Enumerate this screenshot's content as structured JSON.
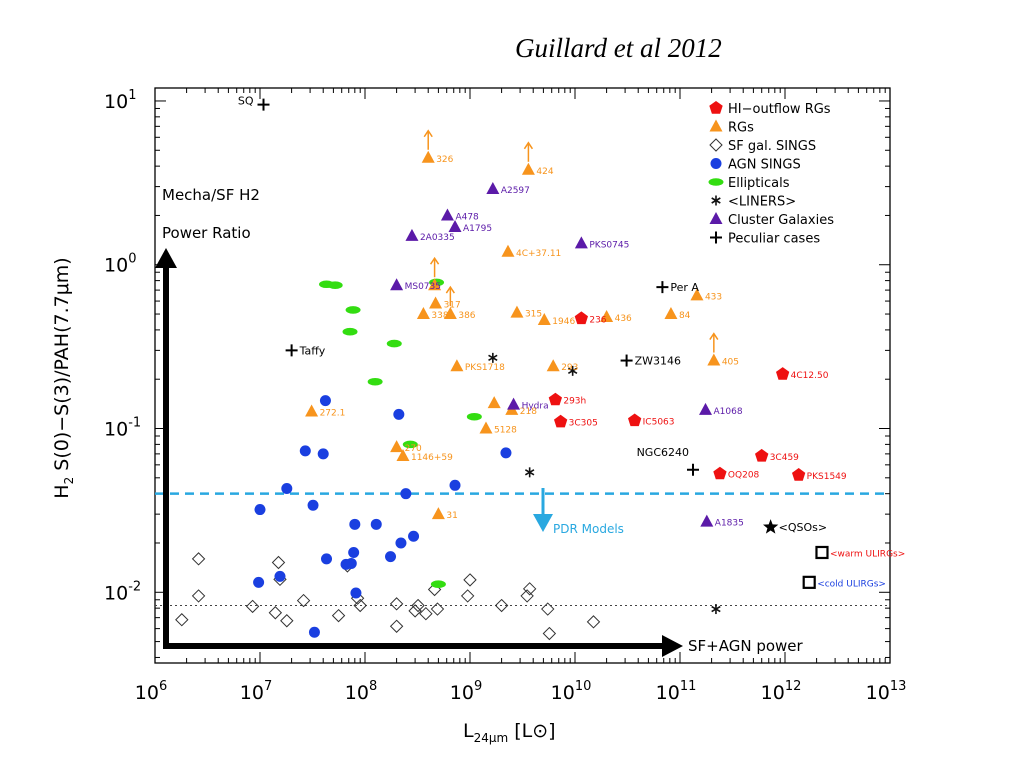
{
  "citation": "Guillard et al 2012",
  "chart_data": {
    "type": "scatter",
    "xscale": "log",
    "yscale": "log",
    "xlim": [
      1000000,
      10000000000000
    ],
    "ylim": [
      0.0037,
      12
    ],
    "xlabel": "L24μm [L⊙]",
    "ylabel": "H2 S(0)−S(3)/PAH(7.7μm)",
    "x_ticks": [
      {
        "exp": "6",
        "value": 1000000
      },
      {
        "exp": "7",
        "value": 10000000
      },
      {
        "exp": "8",
        "value": 100000000
      },
      {
        "exp": "9",
        "value": 1000000000
      },
      {
        "exp": "10",
        "value": 10000000000
      },
      {
        "exp": "11",
        "value": 100000000000
      },
      {
        "exp": "12",
        "value": 1000000000000
      },
      {
        "exp": "13",
        "value": 10000000000000
      }
    ],
    "y_ticks": [
      {
        "exp": "1",
        "value": 10
      },
      {
        "exp": "0",
        "value": 1
      },
      {
        "exp": "-1",
        "value": 0.1
      },
      {
        "exp": "-2",
        "value": 0.01
      }
    ],
    "legend_position": "top-right",
    "legend": [
      {
        "label": "HI−outflow RGs",
        "marker": "pentagon",
        "color": "#ee1111"
      },
      {
        "label": "RGs",
        "marker": "triangle",
        "color": "#f7941d"
      },
      {
        "label": "SF gal. SINGS",
        "marker": "diamond-open",
        "color": "#333333"
      },
      {
        "label": "AGN SINGS",
        "marker": "circle",
        "color": "#1a3fe0"
      },
      {
        "label": "Ellipticals",
        "marker": "ellipse",
        "color": "#33dd11"
      },
      {
        "label": "<LINERS>",
        "marker": "asterisk",
        "color": "#111111"
      },
      {
        "label": "Cluster Galaxies",
        "marker": "triangle",
        "color": "#5b1aa8"
      },
      {
        "label": "Peculiar cases",
        "marker": "plus",
        "color": "#000000"
      }
    ],
    "annotations": {
      "mecha_line1": "Mecha/SF H2",
      "mecha_line2": "Power Ratio",
      "sf_agn": "SF+AGN power",
      "pdr_models": "PDR Models",
      "pdr_level": 0.04,
      "sings_level": 0.0083
    },
    "series": [
      {
        "name": "HI−outflow RGs",
        "marker": "pentagon",
        "color": "#ee1111",
        "label_color": "#ee1111",
        "points": [
          {
            "x": 11500000000,
            "y": 0.47,
            "label": "236"
          },
          {
            "x": 6500000000,
            "y": 0.15,
            "label": "293h"
          },
          {
            "x": 7300000000,
            "y": 0.11,
            "label": "3C305"
          },
          {
            "x": 37000000000,
            "y": 0.112,
            "label": "IC5063"
          },
          {
            "x": 950000000000,
            "y": 0.215,
            "label": "4C12.50"
          },
          {
            "x": 600000000000,
            "y": 0.068,
            "label": "3C459"
          },
          {
            "x": 240000000000,
            "y": 0.053,
            "label": "OQ208"
          },
          {
            "x": 1350000000000,
            "y": 0.052,
            "label": "PKS1549"
          }
        ]
      },
      {
        "name": "RGs",
        "marker": "triangle",
        "color": "#f7941d",
        "label_color": "#f7941d",
        "points": [
          {
            "x": 400000000,
            "y": 4.5,
            "label": "326",
            "arrow": true
          },
          {
            "x": 3600000000,
            "y": 3.8,
            "label": "424",
            "arrow": true
          },
          {
            "x": 2300000000,
            "y": 1.2,
            "label": "4C+37.11"
          },
          {
            "x": 460000000,
            "y": 0.75,
            "label": "",
            "arrow": true
          },
          {
            "x": 470000000,
            "y": 0.58,
            "label": "317"
          },
          {
            "x": 650000000,
            "y": 0.5,
            "label": "386",
            "arrow": true
          },
          {
            "x": 360000000,
            "y": 0.5,
            "label": "338"
          },
          {
            "x": 2800000000,
            "y": 0.51,
            "label": "315"
          },
          {
            "x": 5100000000,
            "y": 0.46,
            "label": "1946"
          },
          {
            "x": 20000000000,
            "y": 0.48,
            "label": "436"
          },
          {
            "x": 82000000000,
            "y": 0.5,
            "label": "84"
          },
          {
            "x": 145000000000,
            "y": 0.65,
            "label": "433"
          },
          {
            "x": 750000000,
            "y": 0.24,
            "label": "PKS1718"
          },
          {
            "x": 6200000000,
            "y": 0.24,
            "label": "293"
          },
          {
            "x": 210000000000,
            "y": 0.26,
            "label": "405",
            "arrow": true
          },
          {
            "x": 1700000000,
            "y": 0.143,
            "label": ""
          },
          {
            "x": 2500000000,
            "y": 0.13,
            "label": "218"
          },
          {
            "x": 1420000000,
            "y": 0.1,
            "label": "5128"
          },
          {
            "x": 31000000,
            "y": 0.127,
            "label": "272.1"
          },
          {
            "x": 200000000,
            "y": 0.077,
            "label": "270"
          },
          {
            "x": 230000000,
            "y": 0.068,
            "label": "1146+59"
          },
          {
            "x": 500000000,
            "y": 0.03,
            "label": "31"
          }
        ]
      },
      {
        "name": "Cluster Galaxies",
        "marker": "triangle",
        "color": "#5b1aa8",
        "label_color": "#5b1aa8",
        "points": [
          {
            "x": 1650000000,
            "y": 2.9,
            "label": "A2597"
          },
          {
            "x": 610000000,
            "y": 2.0,
            "label": "A478"
          },
          {
            "x": 720000000,
            "y": 1.7,
            "label": "A1795"
          },
          {
            "x": 280000000,
            "y": 1.5,
            "label": "2A0335"
          },
          {
            "x": 11500000000,
            "y": 1.35,
            "label": "PKS0745"
          },
          {
            "x": 200000000,
            "y": 0.75,
            "label": "MS0735"
          },
          {
            "x": 2600000000,
            "y": 0.14,
            "label": "Hydra"
          },
          {
            "x": 175000000000,
            "y": 0.13,
            "label": "A1068"
          },
          {
            "x": 180000000000,
            "y": 0.027,
            "label": "A1835"
          }
        ]
      },
      {
        "name": "Peculiar cases",
        "marker": "plus",
        "color": "#000000",
        "label_color": "#000000",
        "points": [
          {
            "x": 10800000,
            "y": 9.5,
            "label": "SQ",
            "label_side": "left"
          },
          {
            "x": 68000000000,
            "y": 0.73,
            "label": "Per A"
          },
          {
            "x": 20000000,
            "y": 0.3,
            "label": "Taffy"
          },
          {
            "x": 31000000000,
            "y": 0.26,
            "label": "ZW3146"
          },
          {
            "x": 133000000000,
            "y": 0.056,
            "label": "NGC6240",
            "label_side": "above-left"
          }
        ]
      },
      {
        "name": "<LINERS>",
        "marker": "asterisk",
        "color": "#111111",
        "points": [
          {
            "x": 1650000000,
            "y": 0.27
          },
          {
            "x": 9500000000,
            "y": 0.225
          },
          {
            "x": 3700000000,
            "y": 0.054
          },
          {
            "x": 220000000000,
            "y": 0.0079
          }
        ]
      },
      {
        "name": "Ellipticals",
        "marker": "ellipse",
        "color": "#33dd11",
        "points": [
          {
            "x": 43000000,
            "y": 0.76
          },
          {
            "x": 52000000,
            "y": 0.75
          },
          {
            "x": 77000000,
            "y": 0.53
          },
          {
            "x": 72000000,
            "y": 0.39
          },
          {
            "x": 190000000,
            "y": 0.33
          },
          {
            "x": 125000000,
            "y": 0.193
          },
          {
            "x": 1100000000,
            "y": 0.118
          },
          {
            "x": 270000000,
            "y": 0.08
          },
          {
            "x": 480000000,
            "y": 0.78
          },
          {
            "x": 500000000,
            "y": 0.0112
          }
        ]
      },
      {
        "name": "AGN SINGS",
        "marker": "circle",
        "color": "#1a3fe0",
        "points": [
          {
            "x": 42000000,
            "y": 0.148
          },
          {
            "x": 210000000,
            "y": 0.122
          },
          {
            "x": 27000000,
            "y": 0.073
          },
          {
            "x": 40000000,
            "y": 0.07
          },
          {
            "x": 2200000000,
            "y": 0.071
          },
          {
            "x": 720000000,
            "y": 0.045
          },
          {
            "x": 18000000,
            "y": 0.043
          },
          {
            "x": 245000000,
            "y": 0.04
          },
          {
            "x": 10000000,
            "y": 0.032
          },
          {
            "x": 32000000,
            "y": 0.034
          },
          {
            "x": 80000000,
            "y": 0.026
          },
          {
            "x": 128000000,
            "y": 0.026
          },
          {
            "x": 290000000,
            "y": 0.022
          },
          {
            "x": 220000000,
            "y": 0.02
          },
          {
            "x": 78000000,
            "y": 0.0175
          },
          {
            "x": 43000000,
            "y": 0.016
          },
          {
            "x": 175000000,
            "y": 0.0165
          },
          {
            "x": 74000000,
            "y": 0.015
          },
          {
            "x": 66000000,
            "y": 0.0148
          },
          {
            "x": 15500000,
            "y": 0.0125
          },
          {
            "x": 9700000,
            "y": 0.0115
          },
          {
            "x": 82000000,
            "y": 0.0099
          },
          {
            "x": 33000000,
            "y": 0.0057
          }
        ]
      },
      {
        "name": "SF gal. SINGS",
        "marker": "diamond-open",
        "color": "#333333",
        "points": [
          {
            "x": 2600000,
            "y": 0.016
          },
          {
            "x": 2600000,
            "y": 0.0095
          },
          {
            "x": 1800000,
            "y": 0.0068
          },
          {
            "x": 15000000,
            "y": 0.0152
          },
          {
            "x": 15500000,
            "y": 0.012
          },
          {
            "x": 8500000,
            "y": 0.0082
          },
          {
            "x": 14000000,
            "y": 0.0075
          },
          {
            "x": 18000000,
            "y": 0.0067
          },
          {
            "x": 26000000,
            "y": 0.0089
          },
          {
            "x": 68000000,
            "y": 0.0145
          },
          {
            "x": 56000000,
            "y": 0.0072
          },
          {
            "x": 85000000,
            "y": 0.0092
          },
          {
            "x": 90000000,
            "y": 0.0083
          },
          {
            "x": 200000000,
            "y": 0.0085
          },
          {
            "x": 200000000,
            "y": 0.0062
          },
          {
            "x": 320000000,
            "y": 0.0083
          },
          {
            "x": 300000000,
            "y": 0.0077
          },
          {
            "x": 380000000,
            "y": 0.0074
          },
          {
            "x": 460000000,
            "y": 0.0104
          },
          {
            "x": 490000000,
            "y": 0.0079
          },
          {
            "x": 1000000000,
            "y": 0.0119
          },
          {
            "x": 950000000,
            "y": 0.0095
          },
          {
            "x": 2000000000,
            "y": 0.0083
          },
          {
            "x": 3700000000,
            "y": 0.0105
          },
          {
            "x": 3500000000,
            "y": 0.0095
          },
          {
            "x": 5500000000,
            "y": 0.0079
          },
          {
            "x": 5700000000,
            "y": 0.0056
          },
          {
            "x": 15000000000,
            "y": 0.0066
          }
        ]
      },
      {
        "name": "QSOs",
        "marker": "star",
        "color": "#000000",
        "label_color": "#000000",
        "points": [
          {
            "x": 730000000000,
            "y": 0.025,
            "label": "<QSOs>"
          }
        ]
      },
      {
        "name": "warm ULIRGs",
        "marker": "square-open",
        "color": "#000000",
        "label_color": "#ee1111",
        "points": [
          {
            "x": 2250000000000,
            "y": 0.0175,
            "label": "<warm ULIRGs>"
          }
        ]
      },
      {
        "name": "cold ULIRGs",
        "marker": "square-open",
        "color": "#000000",
        "label_color": "#1a3fe0",
        "points": [
          {
            "x": 1700000000000,
            "y": 0.0115,
            "label": "<cold ULIRGs>"
          }
        ]
      }
    ]
  }
}
